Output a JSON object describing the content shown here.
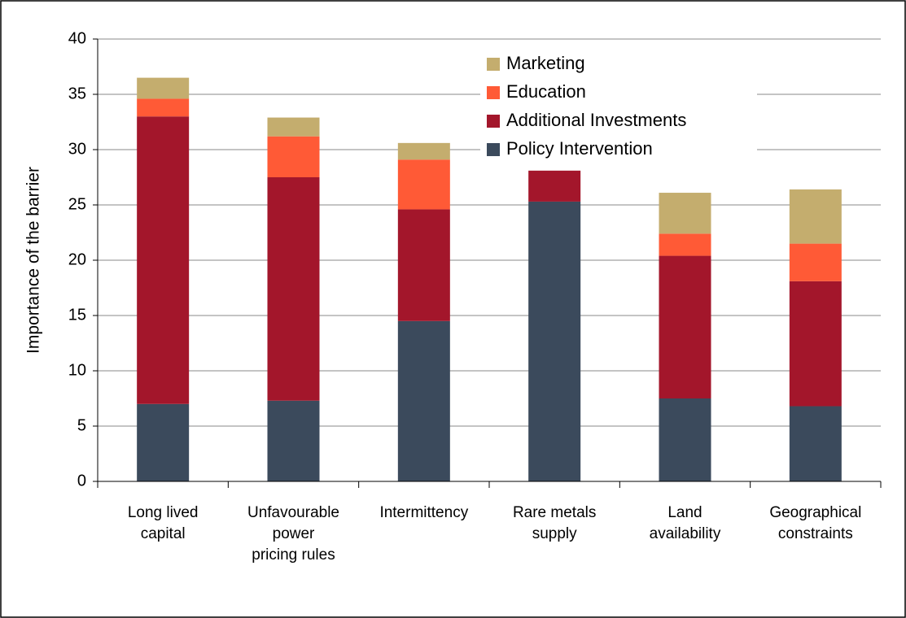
{
  "chart_data": {
    "type": "stacked_bar",
    "ylabel": "Importance of the barrier",
    "categories": [
      "Long lived\ncapital",
      "Unfavourable\npower\npricing rules",
      "Intermittency",
      "Rare metals\nsupply",
      "Land\navailability",
      "Geographical\nconstraints"
    ],
    "series": [
      {
        "name": "Policy Intervention",
        "color": "#3b4a5c",
        "values": [
          7.0,
          7.3,
          14.5,
          25.3,
          7.5,
          6.8
        ]
      },
      {
        "name": "Additional Investments",
        "color": "#a3162b",
        "values": [
          26.0,
          20.2,
          10.1,
          2.8,
          12.9,
          11.3
        ]
      },
      {
        "name": "Education",
        "color": "#ff5a36",
        "values": [
          1.6,
          3.7,
          4.5,
          0,
          2.0,
          3.4
        ]
      },
      {
        "name": "Marketing",
        "color": "#c4ad6e",
        "values": [
          1.9,
          1.7,
          1.5,
          0,
          3.7,
          4.9
        ]
      }
    ],
    "ylim": [
      0,
      40
    ],
    "yticks": [
      0,
      5,
      10,
      15,
      20,
      25,
      30,
      35,
      40
    ],
    "grid": true,
    "legend": "top-right"
  }
}
